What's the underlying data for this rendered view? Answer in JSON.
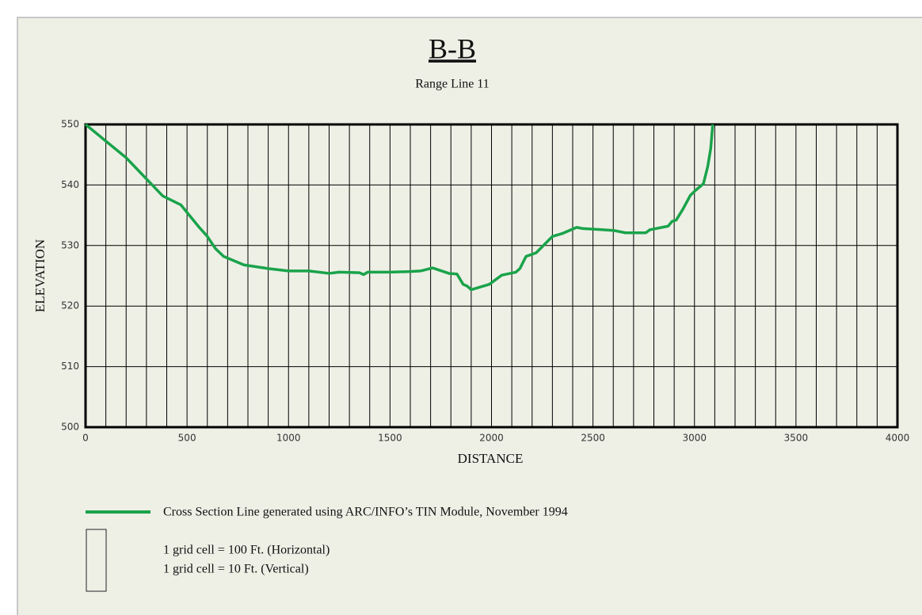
{
  "chart_data": {
    "type": "line",
    "title": "B-B",
    "subtitle": "Range Line 11",
    "x_label": "DISTANCE",
    "y_label": "ELEVATION",
    "xlim": [
      0,
      4000
    ],
    "ylim": [
      500,
      550
    ],
    "xticks": [
      0,
      500,
      1000,
      1500,
      2000,
      2500,
      3000,
      3500,
      4000
    ],
    "yticks": [
      500,
      510,
      520,
      530,
      540,
      550
    ],
    "xgrid": [
      0,
      100,
      200,
      300,
      400,
      500,
      600,
      700,
      800,
      900,
      1000,
      1100,
      1200,
      1300,
      1400,
      1500,
      1600,
      1700,
      1800,
      1900,
      2000,
      2100,
      2200,
      2300,
      2400,
      2500,
      2600,
      2700,
      2800,
      2900,
      3000,
      3100,
      3200,
      3300,
      3400,
      3500,
      3600,
      3700,
      3800,
      3900,
      4000
    ],
    "grid": true,
    "series": [
      {
        "name": "Cross Section Line generated using ARC/INFO’s TIN Module, November 1994",
        "color": "#1aa34a",
        "x": [
          0,
          200,
          380,
          470,
          560,
          600,
          640,
          680,
          780,
          900,
          1000,
          1100,
          1200,
          1250,
          1350,
          1370,
          1390,
          1500,
          1600,
          1650,
          1710,
          1790,
          1830,
          1860,
          1880,
          1900,
          1990,
          2050,
          2120,
          2140,
          2170,
          2220,
          2300,
          2350,
          2420,
          2450,
          2600,
          2660,
          2760,
          2780,
          2870,
          2890,
          2910,
          2943,
          2980,
          3005,
          3044,
          3065,
          3080,
          3090
        ],
        "values": [
          550,
          544.5,
          538.2,
          536.7,
          533.0,
          531.5,
          529.5,
          528.2,
          526.8,
          526.2,
          525.8,
          525.8,
          525.4,
          525.6,
          525.5,
          525.2,
          525.6,
          525.6,
          525.7,
          525.8,
          526.3,
          525.4,
          525.3,
          523.6,
          523.3,
          522.7,
          523.6,
          525.1,
          525.6,
          526.2,
          528.2,
          528.8,
          531.5,
          532.0,
          533.0,
          532.8,
          532.5,
          532.1,
          532.1,
          532.6,
          533.2,
          534.0,
          534.2,
          536.0,
          538.3,
          539.1,
          540.2,
          543,
          546,
          550
        ]
      }
    ],
    "annotations": [
      "1 grid cell = 100 Ft. (Horizontal)",
      "1 grid cell = 10 Ft. (Vertical)"
    ]
  }
}
